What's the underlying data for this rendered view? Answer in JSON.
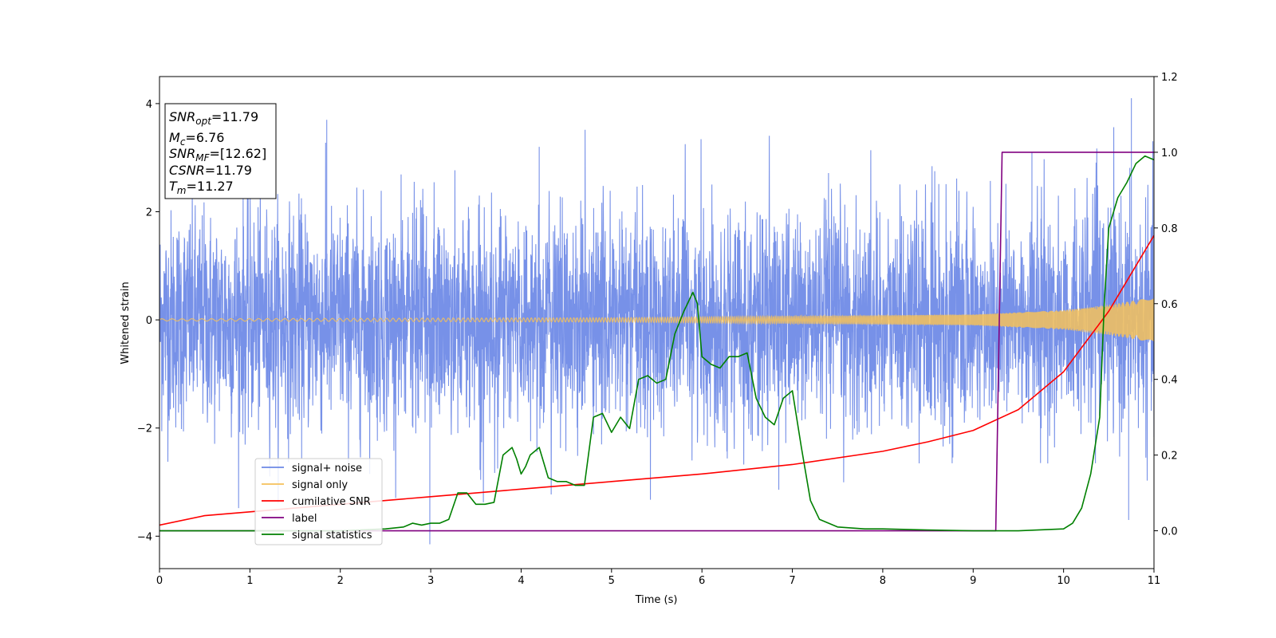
{
  "chart_data": {
    "type": "line",
    "xlabel": "Time (s)",
    "ylabel": "Whitened strain",
    "xlim": [
      0,
      11
    ],
    "ylim_left": [
      -4.6,
      4.5
    ],
    "ylim_right": [
      -0.1,
      1.2
    ],
    "x_ticks": [
      "0",
      "1",
      "2",
      "3",
      "4",
      "5",
      "6",
      "7",
      "8",
      "9",
      "10",
      "11"
    ],
    "y_left_ticks": [
      "−4",
      "−2",
      "0",
      "2",
      "4"
    ],
    "y_right_ticks": [
      "0.0",
      "0.2",
      "0.4",
      "0.6",
      "0.8",
      "1.0",
      "1.2"
    ],
    "info_box": {
      "snr_opt": {
        "sym": "SNR",
        "sub": "opt",
        "val": "=11.79"
      },
      "mc": {
        "sym": "M",
        "sub": "c",
        "val": "=6.76"
      },
      "snr_mf": {
        "sym": "SNR",
        "sub": "MF",
        "val": "=[12.62]"
      },
      "csnr": {
        "sym": "CSNR",
        "sub": "",
        "val": "=11.79"
      },
      "tm": {
        "sym": "T",
        "sub": "m",
        "val": "=11.27"
      }
    },
    "legend": {
      "placement": "lower-left",
      "entries": [
        {
          "label": "signal+ noise",
          "color": "#6b88e6"
        },
        {
          "label": "signal only",
          "color": "#f5c15a"
        },
        {
          "label": "cumilative SNR",
          "color": "#ff0000"
        },
        {
          "label": "label",
          "color": "#800080"
        },
        {
          "label": "signal statistics",
          "color": "#008000"
        }
      ]
    },
    "series": [
      {
        "name": "signal+ noise",
        "axis": "left",
        "color": "#6b88e6",
        "description_values": {
          "noise_sigma": 1.0,
          "peak_max": 4.1,
          "peak_min": -4.15
        }
      },
      {
        "name": "signal only",
        "axis": "left",
        "color": "#f5c15a",
        "envelope": {
          "x": [
            0,
            5,
            9,
            10,
            10.5,
            11
          ],
          "y": [
            0.02,
            0.04,
            0.1,
            0.18,
            0.28,
            0.42
          ]
        }
      },
      {
        "name": "cumilative SNR",
        "axis": "right",
        "color": "#ff0000",
        "x": [
          0,
          0.5,
          1,
          2,
          3,
          4,
          5,
          6,
          7,
          8,
          8.5,
          9,
          9.5,
          10,
          10.5,
          11
        ],
        "y": [
          0.015,
          0.04,
          0.05,
          0.07,
          0.09,
          0.11,
          0.13,
          0.15,
          0.175,
          0.21,
          0.235,
          0.265,
          0.32,
          0.42,
          0.58,
          0.78
        ]
      },
      {
        "name": "label",
        "axis": "right",
        "color": "#800080",
        "x": [
          0,
          9.25,
          9.32,
          11
        ],
        "y": [
          0.0,
          0.0,
          1.0,
          1.0
        ]
      },
      {
        "name": "signal statistics",
        "axis": "right",
        "color": "#008000",
        "x": [
          0,
          1,
          2,
          2.5,
          2.7,
          2.8,
          2.9,
          3.0,
          3.1,
          3.2,
          3.3,
          3.4,
          3.5,
          3.6,
          3.7,
          3.8,
          3.9,
          3.95,
          4.0,
          4.05,
          4.1,
          4.2,
          4.3,
          4.4,
          4.5,
          4.6,
          4.7,
          4.8,
          4.9,
          5.0,
          5.1,
          5.2,
          5.3,
          5.4,
          5.5,
          5.6,
          5.7,
          5.8,
          5.9,
          5.95,
          6.0,
          6.1,
          6.2,
          6.3,
          6.4,
          6.5,
          6.6,
          6.7,
          6.8,
          6.9,
          7.0,
          7.1,
          7.2,
          7.3,
          7.5,
          7.8,
          8.0,
          8.5,
          9.0,
          9.5,
          10.0,
          10.1,
          10.2,
          10.3,
          10.4,
          10.45,
          10.5,
          10.6,
          10.7,
          10.8,
          10.9,
          11.0
        ],
        "y": [
          0.0,
          0.0,
          0.0,
          0.005,
          0.01,
          0.02,
          0.015,
          0.02,
          0.02,
          0.03,
          0.1,
          0.1,
          0.07,
          0.07,
          0.075,
          0.2,
          0.22,
          0.19,
          0.15,
          0.17,
          0.2,
          0.22,
          0.14,
          0.13,
          0.13,
          0.12,
          0.12,
          0.3,
          0.31,
          0.26,
          0.3,
          0.27,
          0.4,
          0.41,
          0.39,
          0.4,
          0.52,
          0.58,
          0.63,
          0.6,
          0.46,
          0.44,
          0.43,
          0.46,
          0.46,
          0.47,
          0.35,
          0.3,
          0.28,
          0.35,
          0.37,
          0.22,
          0.08,
          0.03,
          0.01,
          0.005,
          0.005,
          0.002,
          0.0,
          0.0,
          0.005,
          0.02,
          0.06,
          0.15,
          0.3,
          0.6,
          0.8,
          0.88,
          0.92,
          0.97,
          0.99,
          0.98
        ]
      }
    ]
  }
}
